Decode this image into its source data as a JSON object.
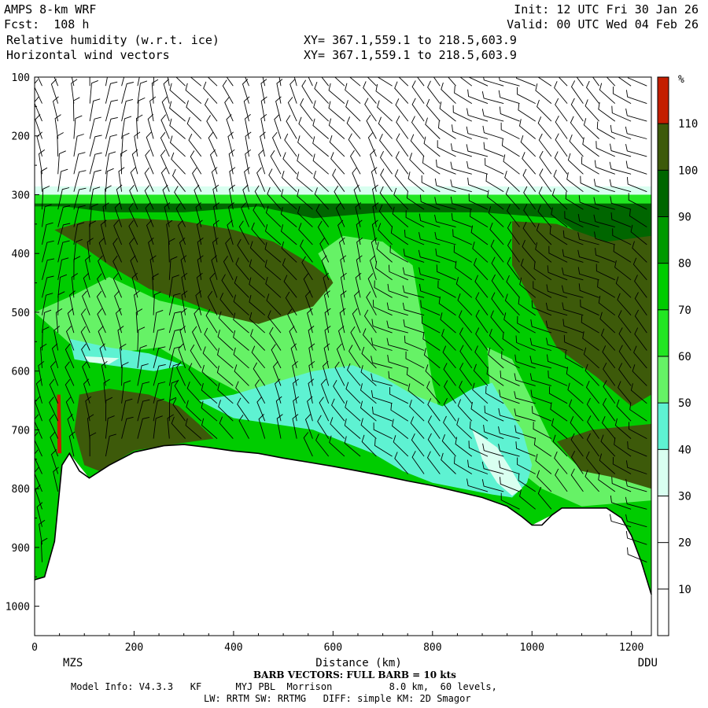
{
  "header": {
    "model": "AMPS 8-km WRF",
    "fcst": "Fcst:  108 h",
    "init": "Init: 12 UTC Fri 30 Jan 26",
    "valid": "Valid: 00 UTC Wed 04 Feb 26",
    "field1": "Relative humidity (w.r.t. ice)",
    "field2": "Horizontal wind vectors",
    "xy1": "XY= 367.1,559.1 to 218.5,603.9",
    "xy2": "XY= 367.1,559.1 to 218.5,603.9"
  },
  "footer": {
    "barb_note": "BARB VECTORS: FULL BARB = 10 kts",
    "line1": "Model Info: V4.3.3   KF      MYJ PBL  Morrison          8.0 km,  60 levels,",
    "line2": "LW: RRTM SW: RRTMG   DIFF: simple KM: 2D Smagor"
  },
  "chart_data": {
    "type": "heatmap",
    "title": "Relative humidity (w.r.t. ice)",
    "xlabel": "Distance (km)",
    "ylabel": "",
    "x_ticks": [
      0,
      200,
      400,
      600,
      800,
      1000,
      1200
    ],
    "y_ticks": [
      100,
      200,
      300,
      400,
      500,
      600,
      700,
      800,
      900,
      1000
    ],
    "xlim": [
      0,
      1240
    ],
    "ylim": [
      1050,
      100
    ],
    "endpoints": {
      "left": "MZS",
      "right": "DDU"
    },
    "colorbar": {
      "unit": "%",
      "levels": [
        10,
        20,
        30,
        40,
        50,
        60,
        70,
        80,
        90,
        100,
        110
      ],
      "colors": [
        "#ffffff",
        "#ffffff",
        "#ffffff",
        "#d9fff0",
        "#5ef2d2",
        "#66f266",
        "#22e622",
        "#00cc00",
        "#009900",
        "#006600",
        "#3d5a0a",
        "#c41e00"
      ]
    },
    "terrain": [
      [
        0,
        955
      ],
      [
        20,
        950
      ],
      [
        40,
        890
      ],
      [
        55,
        760
      ],
      [
        70,
        740
      ],
      [
        90,
        770
      ],
      [
        110,
        782
      ],
      [
        150,
        760
      ],
      [
        200,
        738
      ],
      [
        260,
        727
      ],
      [
        300,
        725
      ],
      [
        350,
        730
      ],
      [
        400,
        736
      ],
      [
        450,
        740
      ],
      [
        500,
        748
      ],
      [
        550,
        755
      ],
      [
        600,
        762
      ],
      [
        650,
        770
      ],
      [
        700,
        778
      ],
      [
        750,
        787
      ],
      [
        800,
        795
      ],
      [
        850,
        805
      ],
      [
        900,
        815
      ],
      [
        950,
        830
      ],
      [
        980,
        848
      ],
      [
        1000,
        862
      ],
      [
        1020,
        862
      ],
      [
        1040,
        845
      ],
      [
        1060,
        833
      ],
      [
        1100,
        833
      ],
      [
        1150,
        833
      ],
      [
        1180,
        850
      ],
      [
        1200,
        880
      ],
      [
        1220,
        925
      ],
      [
        1240,
        980
      ]
    ],
    "regions": [
      {
        "color": "#00cc00",
        "points": [
          [
            0,
            300
          ],
          [
            1240,
            300
          ],
          [
            1240,
            980
          ],
          [
            1220,
            925
          ],
          [
            1180,
            850
          ],
          [
            1100,
            833
          ],
          [
            1040,
            845
          ],
          [
            1000,
            862
          ],
          [
            950,
            830
          ],
          [
            900,
            815
          ],
          [
            800,
            795
          ],
          [
            700,
            778
          ],
          [
            600,
            762
          ],
          [
            500,
            748
          ],
          [
            400,
            736
          ],
          [
            300,
            725
          ],
          [
            200,
            738
          ],
          [
            110,
            782
          ],
          [
            70,
            740
          ],
          [
            40,
            890
          ],
          [
            20,
            950
          ],
          [
            0,
            955
          ]
        ]
      },
      {
        "color": "#d9fff0",
        "points": [
          [
            0,
            286
          ],
          [
            1240,
            286
          ],
          [
            1240,
            300
          ],
          [
            0,
            300
          ]
        ]
      },
      {
        "color": "#22e622",
        "points": [
          [
            0,
            300
          ],
          [
            1240,
            300
          ],
          [
            1240,
            315
          ],
          [
            0,
            315
          ]
        ]
      },
      {
        "color": "#006600",
        "points": [
          [
            0,
            315
          ],
          [
            1240,
            315
          ],
          [
            1240,
            390
          ],
          [
            1150,
            400
          ],
          [
            1050,
            340
          ],
          [
            900,
            330
          ],
          [
            700,
            330
          ],
          [
            560,
            340
          ],
          [
            450,
            320
          ],
          [
            300,
            330
          ],
          [
            150,
            330
          ],
          [
            60,
            320
          ],
          [
            0,
            320
          ]
        ]
      },
      {
        "color": "#3d5a0a",
        "points": [
          [
            40,
            360
          ],
          [
            100,
            390
          ],
          [
            150,
            420
          ],
          [
            230,
            460
          ],
          [
            300,
            480
          ],
          [
            360,
            500
          ],
          [
            420,
            540
          ],
          [
            520,
            540
          ],
          [
            600,
            510
          ],
          [
            620,
            460
          ],
          [
            560,
            420
          ],
          [
            480,
            380
          ],
          [
            400,
            360
          ],
          [
            300,
            345
          ],
          [
            200,
            340
          ],
          [
            100,
            345
          ]
        ]
      },
      {
        "color": "#3d5a0a",
        "points": [
          [
            960,
            345
          ],
          [
            1050,
            350
          ],
          [
            1150,
            380
          ],
          [
            1240,
            370
          ],
          [
            1240,
            640
          ],
          [
            1200,
            660
          ],
          [
            1130,
            610
          ],
          [
            1050,
            560
          ],
          [
            1000,
            480
          ],
          [
            960,
            420
          ]
        ]
      },
      {
        "color": "#66f266",
        "points": [
          [
            0,
            500
          ],
          [
            80,
            560
          ],
          [
            150,
            570
          ],
          [
            250,
            560
          ],
          [
            330,
            600
          ],
          [
            420,
            640
          ],
          [
            520,
            650
          ],
          [
            620,
            650
          ],
          [
            700,
            690
          ],
          [
            780,
            700
          ],
          [
            820,
            690
          ],
          [
            800,
            620
          ],
          [
            780,
            520
          ],
          [
            760,
            420
          ],
          [
            700,
            380
          ],
          [
            620,
            370
          ],
          [
            570,
            400
          ],
          [
            600,
            450
          ],
          [
            560,
            490
          ],
          [
            450,
            520
          ],
          [
            350,
            500
          ],
          [
            250,
            480
          ],
          [
            150,
            440
          ],
          [
            80,
            470
          ]
        ]
      },
      {
        "color": "#66f266",
        "points": [
          [
            910,
            560
          ],
          [
            960,
            580
          ],
          [
            1000,
            650
          ],
          [
            1040,
            720
          ],
          [
            1090,
            760
          ],
          [
            1130,
            740
          ],
          [
            1180,
            760
          ],
          [
            1240,
            760
          ],
          [
            1240,
            820
          ],
          [
            1100,
            830
          ],
          [
            1020,
            800
          ],
          [
            960,
            760
          ],
          [
            920,
            690
          ]
        ]
      },
      {
        "color": "#5ef2d2",
        "points": [
          [
            330,
            650
          ],
          [
            400,
            680
          ],
          [
            480,
            690
          ],
          [
            560,
            700
          ],
          [
            620,
            720
          ],
          [
            680,
            740
          ],
          [
            740,
            770
          ],
          [
            800,
            790
          ],
          [
            860,
            800
          ],
          [
            920,
            810
          ],
          [
            960,
            815
          ],
          [
            990,
            790
          ],
          [
            1000,
            760
          ],
          [
            980,
            700
          ],
          [
            940,
            650
          ],
          [
            920,
            620
          ],
          [
            880,
            630
          ],
          [
            820,
            660
          ],
          [
            760,
            640
          ],
          [
            700,
            610
          ],
          [
            640,
            590
          ],
          [
            560,
            600
          ],
          [
            480,
            620
          ],
          [
            400,
            640
          ]
        ]
      },
      {
        "color": "#5ef2d2",
        "points": [
          [
            70,
            545
          ],
          [
            150,
            560
          ],
          [
            230,
            570
          ],
          [
            300,
            590
          ],
          [
            240,
            600
          ],
          [
            150,
            590
          ],
          [
            80,
            580
          ]
        ]
      },
      {
        "color": "#d9fff0",
        "points": [
          [
            880,
            700
          ],
          [
            930,
            730
          ],
          [
            960,
            770
          ],
          [
            980,
            800
          ],
          [
            960,
            812
          ],
          [
            930,
            790
          ],
          [
            900,
            750
          ]
        ]
      },
      {
        "color": "#d9fff0",
        "points": [
          [
            100,
            575
          ],
          [
            170,
            578
          ],
          [
            150,
            588
          ],
          [
            110,
            585
          ]
        ]
      },
      {
        "color": "#3d5a0a",
        "points": [
          [
            90,
            640
          ],
          [
            150,
            630
          ],
          [
            230,
            640
          ],
          [
            290,
            660
          ],
          [
            330,
            690
          ],
          [
            360,
            715
          ],
          [
            300,
            722
          ],
          [
            200,
            735
          ],
          [
            130,
            770
          ],
          [
            100,
            760
          ],
          [
            80,
            700
          ]
        ]
      },
      {
        "color": "#3d5a0a",
        "points": [
          [
            1050,
            720
          ],
          [
            1120,
            700
          ],
          [
            1240,
            690
          ],
          [
            1240,
            800
          ],
          [
            1160,
            780
          ],
          [
            1100,
            770
          ]
        ]
      },
      {
        "color": "#c41e00",
        "points": [
          [
            45,
            640
          ],
          [
            52,
            640
          ],
          [
            54,
            740
          ],
          [
            46,
            740
          ]
        ]
      }
    ]
  }
}
